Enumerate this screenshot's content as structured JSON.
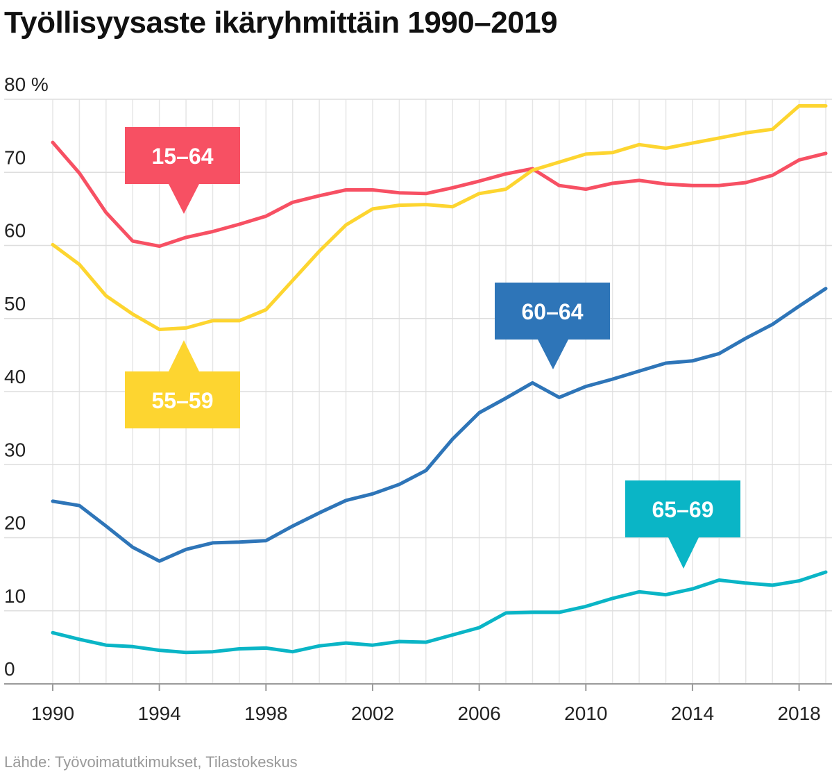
{
  "title": "Työllisyysaste ikäryhmittäin 1990–2019",
  "source": "Lähde: Työvoimatutkimukset, Tilastokeskus",
  "chart_data": {
    "type": "line",
    "title": "Työllisyysaste ikäryhmittäin 1990–2019",
    "xlabel": "",
    "ylabel": "%",
    "xlim": [
      1990,
      2019
    ],
    "ylim": [
      0,
      80
    ],
    "grid": true,
    "y_ticks": [
      {
        "value": 80,
        "label": "80 %"
      },
      {
        "value": 70,
        "label": "70"
      },
      {
        "value": 60,
        "label": "60"
      },
      {
        "value": 50,
        "label": "50"
      },
      {
        "value": 40,
        "label": "40"
      },
      {
        "value": 30,
        "label": "30"
      },
      {
        "value": 20,
        "label": "20"
      },
      {
        "value": 10,
        "label": "10"
      },
      {
        "value": 0,
        "label": "0"
      }
    ],
    "x_ticks": [
      {
        "value": 1990,
        "label": "1990"
      },
      {
        "value": 1994,
        "label": "1994"
      },
      {
        "value": 1998,
        "label": "1998"
      },
      {
        "value": 2002,
        "label": "2002"
      },
      {
        "value": 2006,
        "label": "2006"
      },
      {
        "value": 2010,
        "label": "2010"
      },
      {
        "value": 2014,
        "label": "2014"
      },
      {
        "value": 2018,
        "label": "2018"
      }
    ],
    "x": [
      1990,
      1991,
      1992,
      1993,
      1994,
      1995,
      1996,
      1997,
      1998,
      1999,
      2000,
      2001,
      2002,
      2003,
      2004,
      2005,
      2006,
      2007,
      2008,
      2009,
      2010,
      2011,
      2012,
      2013,
      2014,
      2015,
      2016,
      2017,
      2018,
      2019
    ],
    "series": [
      {
        "name": "15–64",
        "color": "#f75063",
        "values": [
          74.1,
          69.9,
          64.5,
          60.6,
          59.9,
          61.1,
          61.9,
          62.9,
          64.0,
          65.9,
          66.8,
          67.6,
          67.6,
          67.2,
          67.1,
          67.9,
          68.8,
          69.8,
          70.5,
          68.2,
          67.7,
          68.5,
          68.9,
          68.4,
          68.2,
          68.2,
          68.6,
          69.6,
          71.7,
          72.6
        ]
      },
      {
        "name": "55–59",
        "color": "#fdd530",
        "values": [
          60.1,
          57.4,
          53.1,
          50.6,
          48.5,
          48.7,
          49.7,
          49.7,
          51.2,
          55.2,
          59.2,
          62.8,
          65.0,
          65.5,
          65.6,
          65.3,
          67.1,
          67.7,
          70.3,
          71.4,
          72.5,
          72.7,
          73.8,
          73.3,
          74.0,
          74.7,
          75.4,
          75.9,
          79.1,
          79.1
        ]
      },
      {
        "name": "60–64",
        "color": "#2e75b8",
        "values": [
          25.0,
          24.4,
          21.6,
          18.7,
          16.8,
          18.4,
          19.3,
          19.4,
          19.6,
          21.6,
          23.4,
          25.1,
          26.0,
          27.3,
          29.2,
          33.5,
          37.1,
          39.1,
          41.2,
          39.2,
          40.7,
          41.7,
          42.8,
          43.9,
          44.2,
          45.2,
          47.3,
          49.2,
          51.7,
          54.1
        ]
      },
      {
        "name": "65–69",
        "color": "#0ab5c6",
        "values": [
          7.0,
          6.1,
          5.3,
          5.1,
          4.6,
          4.3,
          4.4,
          4.8,
          4.9,
          4.4,
          5.2,
          5.6,
          5.3,
          5.8,
          5.7,
          6.7,
          7.7,
          9.7,
          9.8,
          9.8,
          10.6,
          11.7,
          12.6,
          12.2,
          13.0,
          14.2,
          13.8,
          13.5,
          14.1,
          15.3
        ]
      }
    ],
    "callouts": [
      {
        "series": "15–64",
        "label": "15–64",
        "pointer": "down"
      },
      {
        "series": "55–59",
        "label": "55–59",
        "pointer": "up"
      },
      {
        "series": "60–64",
        "label": "60–64",
        "pointer": "down"
      },
      {
        "series": "65–69",
        "label": "65–69",
        "pointer": "down"
      }
    ]
  }
}
